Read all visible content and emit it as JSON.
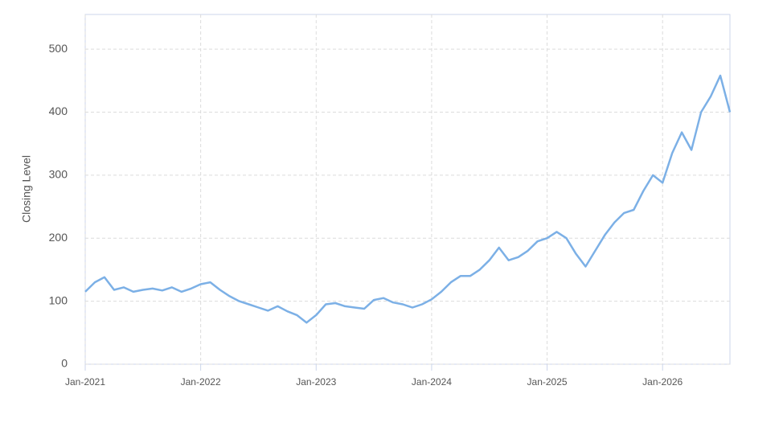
{
  "chart_data": {
    "type": "line",
    "y_label": "Closing Level",
    "x": [
      "2021-01",
      "2021-02",
      "2021-03",
      "2021-04",
      "2021-05",
      "2021-06",
      "2021-07",
      "2021-08",
      "2021-09",
      "2021-10",
      "2021-11",
      "2021-12",
      "2022-01",
      "2022-02",
      "2022-03",
      "2022-04",
      "2022-05",
      "2022-06",
      "2022-07",
      "2022-08",
      "2022-09",
      "2022-10",
      "2022-11",
      "2022-12",
      "2023-01",
      "2023-02",
      "2023-03",
      "2023-04",
      "2023-05",
      "2023-06",
      "2023-07",
      "2023-08",
      "2023-09",
      "2023-10",
      "2023-11",
      "2023-12",
      "2024-01",
      "2024-02",
      "2024-03",
      "2024-04",
      "2024-05",
      "2024-06",
      "2024-07",
      "2024-08",
      "2024-09",
      "2024-10",
      "2024-11",
      "2024-12",
      "2025-01",
      "2025-02",
      "2025-03",
      "2025-04",
      "2025-05",
      "2025-06",
      "2025-07",
      "2025-08",
      "2025-09",
      "2025-10",
      "2025-11",
      "2025-12",
      "2026-01",
      "2026-02",
      "2026-03",
      "2026-04",
      "2026-05",
      "2026-06",
      "2026-07",
      "2026-08"
    ],
    "values": [
      115,
      130,
      138,
      118,
      122,
      115,
      118,
      120,
      117,
      122,
      115,
      120,
      127,
      130,
      118,
      108,
      100,
      95,
      90,
      85,
      92,
      84,
      78,
      66,
      78,
      95,
      97,
      92,
      90,
      88,
      102,
      105,
      98,
      95,
      90,
      95,
      103,
      115,
      130,
      140,
      140,
      150,
      165,
      185,
      165,
      170,
      180,
      195,
      200,
      210,
      200,
      175,
      155,
      180,
      205,
      225,
      240,
      245,
      275,
      300,
      288,
      335,
      368,
      340,
      400,
      425,
      458,
      400
    ],
    "color": "#7cb0e6",
    "xlim": [
      "2021-01",
      "2026-08"
    ],
    "xticks": [
      {
        "value": "2021-01",
        "label": "Jan-2021"
      },
      {
        "value": "2022-01",
        "label": "Jan-2022"
      },
      {
        "value": "2023-01",
        "label": "Jan-2023"
      },
      {
        "value": "2024-01",
        "label": "Jan-2024"
      },
      {
        "value": "2025-01",
        "label": "Jan-2025"
      },
      {
        "value": "2026-01",
        "label": "Jan-2026"
      }
    ],
    "ylim": [
      0,
      555
    ],
    "yticks": [
      0,
      100,
      200,
      300,
      400,
      500
    ],
    "grid": true
  }
}
